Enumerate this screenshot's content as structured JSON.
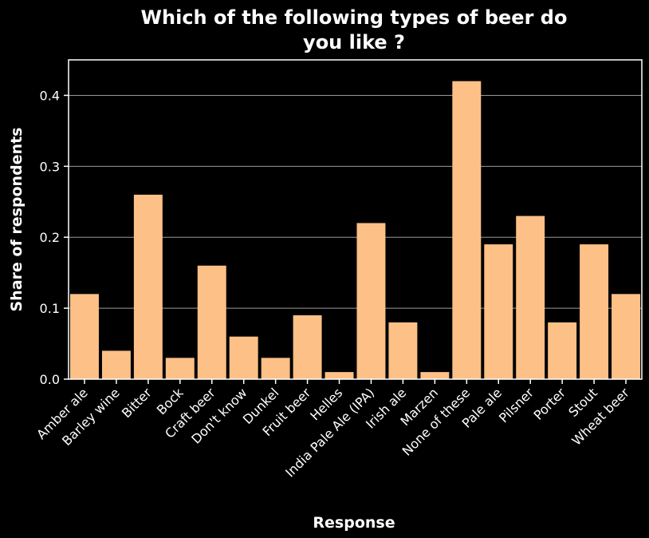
{
  "chart_data": {
    "type": "bar",
    "title_lines": [
      "Which of the following types of beer do",
      "you like ?"
    ],
    "xlabel": "Response",
    "ylabel": "Share of respondents",
    "ylim": [
      0,
      0.45
    ],
    "yticks": [
      "0.0",
      "0.1",
      "0.2",
      "0.3",
      "0.4"
    ],
    "grid": true,
    "categories": [
      "Amber ale",
      "Barley wine",
      "Bitter",
      "Bock",
      "Craft beer",
      "Don't know",
      "Dunkel",
      "Fruit beer",
      "Helles",
      "India Pale Ale (IPA)",
      "Irish ale",
      "Marzen",
      "None of these",
      "Pale ale",
      "Pilsner",
      "Porter",
      "Stout",
      "Wheat beer"
    ],
    "values": [
      0.12,
      0.04,
      0.26,
      0.03,
      0.16,
      0.06,
      0.03,
      0.09,
      0.01,
      0.22,
      0.08,
      0.01,
      0.42,
      0.19,
      0.23,
      0.08,
      0.19,
      0.12
    ]
  },
  "colors": {
    "background": "#000000",
    "bar": "#fdc086",
    "grid": "#999999",
    "text": "#ffffff"
  }
}
